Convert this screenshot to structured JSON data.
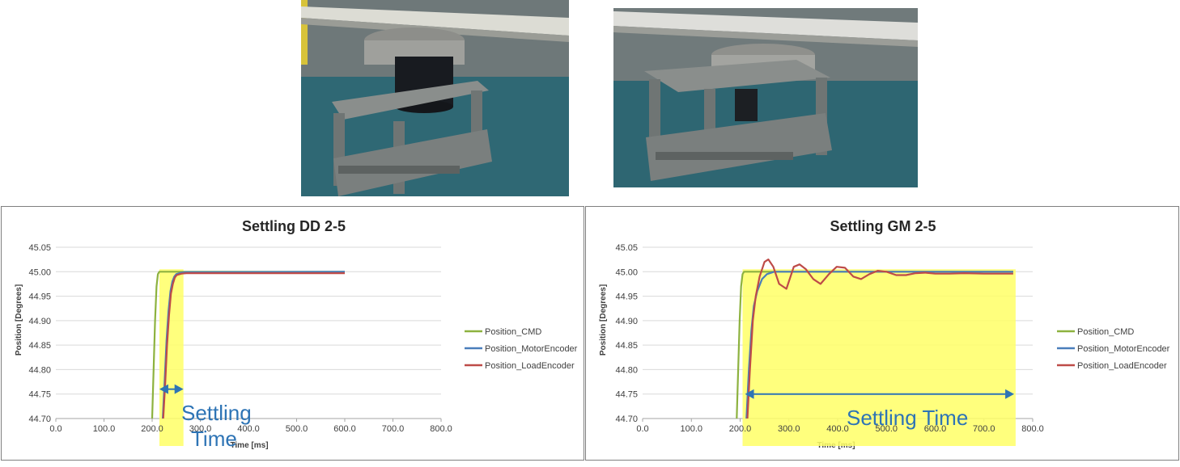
{
  "photos": [
    {
      "name": "direct-drive-test-rig-photo"
    },
    {
      "name": "gear-motor-test-rig-photo"
    }
  ],
  "colors": {
    "cmd": "#8db23f",
    "motor": "#4a7ebb",
    "load": "#be4b48",
    "highlight": "#ffff66",
    "annotation": "#2e74b5",
    "grid": "#d9d9d9"
  },
  "chart_data": [
    {
      "type": "line",
      "title": "Settling DD 2-5",
      "xlabel": "Time [ms]",
      "ylabel": "Position [Degrees]",
      "xlim": [
        0,
        800
      ],
      "ylim": [
        44.7,
        45.05
      ],
      "x_ticks": [
        "0.0",
        "100.0",
        "200.0",
        "300.0",
        "400.0",
        "500.0",
        "600.0",
        "700.0",
        "800.0"
      ],
      "y_ticks": [
        "44.70",
        "44.75",
        "44.80",
        "44.85",
        "44.90",
        "44.95",
        "45.00",
        "45.05"
      ],
      "grid": "horizontal",
      "legend": "right",
      "series": [
        {
          "name": "Position_CMD",
          "color": "#8db23f",
          "x": [
            200,
            203,
            206,
            209,
            212,
            215,
            600
          ],
          "y": [
            44.7,
            44.8,
            44.9,
            44.97,
            44.995,
            45.0,
            45.0
          ]
        },
        {
          "name": "Position_MotorEncoder",
          "color": "#4a7ebb",
          "x": [
            222,
            226,
            230,
            234,
            238,
            242,
            246,
            250,
            260,
            270,
            600
          ],
          "y": [
            44.7,
            44.78,
            44.86,
            44.92,
            44.96,
            44.98,
            44.99,
            44.995,
            44.998,
            44.999,
            45.0
          ]
        },
        {
          "name": "Position_LoadEncoder",
          "color": "#be4b48",
          "x": [
            223,
            227,
            231,
            235,
            239,
            243,
            247,
            251,
            261,
            271,
            600
          ],
          "y": [
            44.7,
            44.77,
            44.85,
            44.91,
            44.955,
            44.975,
            44.988,
            44.993,
            44.996,
            44.997,
            44.997
          ]
        }
      ],
      "highlight": {
        "x": [
          215,
          265
        ],
        "y": [
          44.69,
          45.0
        ]
      },
      "arrow": {
        "x": [
          215,
          265
        ],
        "y": 44.76
      },
      "annotation": {
        "text": "Settling Time",
        "line1": "Settling",
        "line2": "Time"
      }
    },
    {
      "type": "line",
      "title": "Settling GM 2-5",
      "xlabel": "Time [ms]",
      "ylabel": "Position [Degrees]",
      "xlim": [
        0,
        800
      ],
      "ylim": [
        44.7,
        45.05
      ],
      "x_ticks": [
        "0.0",
        "100.0",
        "200.0",
        "300.0",
        "400.0",
        "500.0",
        "600.0",
        "700.0",
        "800.0"
      ],
      "y_ticks": [
        "44.70",
        "44.75",
        "44.80",
        "44.85",
        "44.90",
        "44.95",
        "45.00",
        "45.05"
      ],
      "grid": "horizontal",
      "legend": "right",
      "series": [
        {
          "name": "Position_CMD",
          "color": "#8db23f",
          "x": [
            193,
            196,
            199,
            202,
            205,
            208,
            760
          ],
          "y": [
            44.7,
            44.8,
            44.9,
            44.97,
            44.995,
            45.0,
            45.0
          ]
        },
        {
          "name": "Position_MotorEncoder",
          "color": "#4a7ebb",
          "x": [
            213,
            218,
            223,
            228,
            235,
            245,
            255,
            270,
            290,
            320,
            760
          ],
          "y": [
            44.7,
            44.8,
            44.88,
            44.93,
            44.96,
            44.985,
            44.995,
            45.0,
            45.0,
            45.0,
            45.0
          ]
        },
        {
          "name": "Position_LoadEncoder",
          "color": "#be4b48",
          "x": [
            215,
            220,
            226,
            232,
            240,
            250,
            258,
            268,
            280,
            295,
            310,
            322,
            335,
            350,
            365,
            382,
            398,
            415,
            432,
            448,
            465,
            482,
            500,
            520,
            540,
            560,
            580,
            600,
            630,
            660,
            700,
            760
          ],
          "y": [
            44.7,
            44.8,
            44.9,
            44.95,
            44.99,
            45.02,
            45.025,
            45.01,
            44.975,
            44.965,
            45.01,
            45.015,
            45.005,
            44.985,
            44.975,
            44.995,
            45.01,
            45.008,
            44.99,
            44.985,
            44.995,
            45.002,
            45.0,
            44.993,
            44.993,
            44.997,
            44.998,
            44.996,
            44.996,
            44.997,
            44.996,
            44.996
          ]
        }
      ],
      "highlight": {
        "x": [
          205,
          765
        ],
        "y": [
          44.69,
          45.0
        ]
      },
      "arrow": {
        "x": [
          210,
          762
        ],
        "y": 44.75
      },
      "annotation": {
        "text": "Settling Time"
      }
    }
  ]
}
